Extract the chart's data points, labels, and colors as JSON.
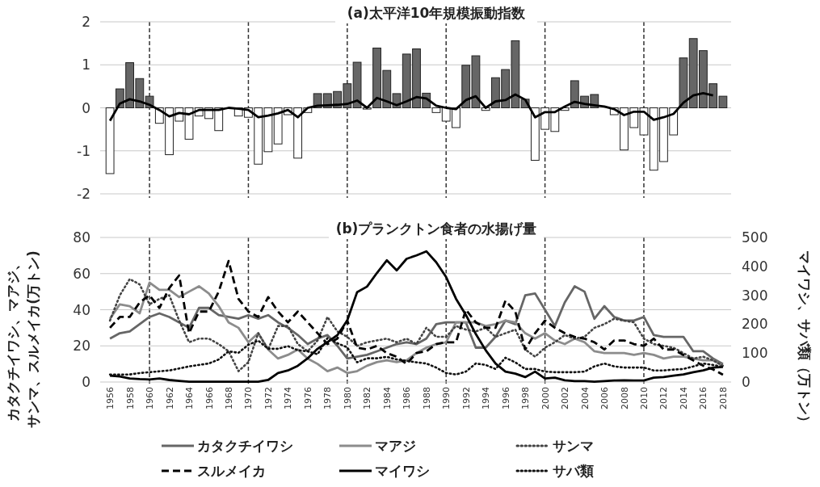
{
  "chart_data": [
    {
      "type": "bar",
      "title": "(a)太平洋10年規模振動指数",
      "categories": [
        "1956",
        null,
        "1958",
        null,
        "1960",
        null,
        "1962",
        null,
        "1964",
        null,
        "1966",
        null,
        "1968",
        null,
        "1970",
        null,
        "1972",
        null,
        "1974",
        null,
        "1976",
        null,
        "1978",
        null,
        "1980",
        null,
        "1982",
        null,
        "1984",
        null,
        "1986",
        null,
        "1988",
        null,
        "1990",
        null,
        "1992",
        null,
        "1994",
        null,
        "1996",
        null,
        "1998",
        null,
        "2000",
        null,
        "2002",
        null,
        "2004",
        null,
        "2006",
        null,
        "2008",
        null,
        "2010",
        null,
        "2012",
        null,
        "2014",
        null,
        "2016",
        null,
        "2018"
      ],
      "series": [
        {
          "colors": [
            "#ffffff",
            "#666666",
            "#666666",
            "#666666",
            "#666666",
            "#ffffff",
            "#ffffff",
            "#ffffff",
            "#ffffff",
            "#ffffff",
            "#ffffff",
            "#ffffff",
            null,
            "#ffffff",
            "#ffffff",
            "#ffffff",
            "#ffffff",
            "#ffffff",
            "#ffffff",
            "#ffffff",
            "#ffffff",
            "#666666",
            "#666666",
            "#666666",
            "#666666",
            "#666666",
            "#ffffff",
            "#666666",
            "#666666",
            "#666666",
            "#666666",
            "#666666",
            "#666666",
            "#ffffff",
            "#ffffff",
            "#ffffff",
            "#666666",
            "#666666",
            "#ffffff",
            "#666666",
            "#666666",
            "#666666",
            "#666666",
            "#ffffff",
            "#ffffff",
            "#ffffff",
            "#ffffff",
            "#666666",
            "#666666",
            "#666666",
            null,
            "#ffffff",
            "#ffffff",
            "#ffffff",
            "#ffffff",
            "#ffffff",
            "#ffffff",
            "#ffffff",
            "#666666",
            "#666666",
            "#666666",
            "#666666",
            "#666666"
          ],
          "values": [
            -1.53,
            0.44,
            1.05,
            0.68,
            0.27,
            -0.36,
            -1.09,
            -0.31,
            -0.73,
            -0.19,
            -0.25,
            -0.53,
            null,
            -0.19,
            -0.22,
            -1.31,
            -1.02,
            -0.84,
            -0.16,
            -1.17,
            -0.11,
            0.33,
            0.33,
            0.38,
            0.56,
            1.06,
            -0.03,
            1.39,
            0.87,
            0.33,
            1.25,
            1.37,
            0.34,
            -0.11,
            -0.31,
            -0.46,
            0.99,
            1.21,
            -0.06,
            0.7,
            0.89,
            1.56,
            0.2,
            -1.22,
            -0.5,
            -0.55,
            -0.06,
            0.63,
            0.27,
            0.31,
            null,
            -0.16,
            -0.98,
            -0.46,
            -0.63,
            -1.45,
            -1.25,
            -0.63,
            1.16,
            1.61,
            1.33,
            0.56,
            0.27
          ]
        },
        {
          "type": "line",
          "color": "#000000",
          "values": [
            -0.3,
            0.1,
            0.2,
            0.15,
            0.07,
            -0.05,
            -0.2,
            -0.12,
            -0.15,
            -0.05,
            -0.05,
            -0.05,
            0.0,
            -0.02,
            -0.05,
            -0.22,
            -0.18,
            -0.13,
            -0.05,
            -0.22,
            0.0,
            0.05,
            0.06,
            0.07,
            0.09,
            0.17,
            0.0,
            0.23,
            0.15,
            0.06,
            0.15,
            0.25,
            0.22,
            0.05,
            0.0,
            -0.03,
            0.18,
            0.27,
            0.0,
            0.15,
            0.18,
            0.31,
            0.19,
            -0.22,
            -0.1,
            -0.1,
            0.03,
            0.14,
            0.09,
            0.06,
            0.03,
            -0.03,
            -0.17,
            -0.09,
            -0.09,
            -0.28,
            -0.22,
            -0.14,
            0.12,
            0.29,
            0.34,
            0.29,
            null
          ]
        }
      ],
      "ylim": [
        -2,
        2
      ],
      "yticks": [
        -2,
        -1,
        0,
        1,
        2
      ],
      "grid": "y",
      "tick_labels": "y",
      "ref_lines": [
        {
          "axis": "x",
          "value": "1960",
          "line_style": "dashed"
        },
        {
          "axis": "x",
          "value": "1970",
          "line_style": "dashed"
        },
        {
          "axis": "x",
          "value": "1980",
          "line_style": "dashed"
        },
        {
          "axis": "x",
          "value": "1990",
          "line_style": "dashed"
        },
        {
          "axis": "x",
          "value": "2000",
          "line_style": "dashed"
        },
        {
          "axis": "x",
          "value": "2010",
          "line_style": "dashed"
        }
      ]
    },
    {
      "type": "line",
      "title": "(b)プランクトン食者の水揚げ量",
      "ylabel": "カタクチイワシ、マアジ、サンマ、スルメイカ(万トン)",
      "y2label": "マイワシ、サバ類（万トン）",
      "categories": [
        "1956",
        null,
        "1958",
        null,
        "1960",
        null,
        "1962",
        null,
        "1964",
        null,
        "1966",
        null,
        "1968",
        null,
        "1970",
        null,
        "1972",
        null,
        "1974",
        null,
        "1976",
        null,
        "1978",
        null,
        "1980",
        null,
        "1982",
        null,
        "1984",
        null,
        "1986",
        null,
        "1988",
        null,
        "1990",
        null,
        "1992",
        null,
        "1994",
        null,
        "1996",
        null,
        "1998",
        null,
        "2000",
        null,
        "2002",
        null,
        "2004",
        null,
        "2006",
        null,
        "2008",
        null,
        "2010",
        null,
        "2012",
        null,
        "2014",
        null,
        "2016",
        null,
        "2018"
      ],
      "series": [
        {
          "name": "カタクチイワシ",
          "color": "#666666",
          "line_style": "solid",
          "values": [
            24,
            27,
            28,
            32,
            36,
            38,
            36,
            33,
            30,
            41,
            41,
            37,
            36,
            35,
            37,
            35,
            37,
            33,
            30,
            26,
            21,
            24,
            26,
            20,
            13,
            14,
            15,
            17,
            19,
            21,
            22,
            21,
            24,
            32,
            33,
            33,
            33,
            19,
            19,
            25,
            34,
            32,
            48,
            49,
            40,
            31,
            44,
            53,
            50,
            35,
            42,
            36,
            34,
            34,
            36,
            26,
            25,
            25,
            25,
            17,
            17,
            13,
            10
          ]
        },
        {
          "name": "マアジ",
          "color": "#8c8c8c",
          "line_style": "solid",
          "values": [
            35,
            43,
            42,
            38,
            55,
            51,
            51,
            47,
            50,
            53,
            49,
            42,
            33,
            30,
            22,
            27,
            18,
            13,
            15,
            18,
            13,
            10,
            6,
            8,
            5,
            6,
            9,
            11,
            12,
            11,
            12,
            16,
            19,
            21,
            22,
            33,
            33,
            33,
            31,
            32,
            34,
            33,
            27,
            24,
            27,
            23,
            21,
            24,
            22,
            17,
            16,
            16,
            16,
            15,
            16,
            15,
            13,
            14,
            14,
            13,
            12,
            12,
            9
          ]
        },
        {
          "name": "サンマ",
          "color": "#444444",
          "line_style": "dotted",
          "values": [
            34,
            48,
            57,
            54,
            43,
            46,
            48,
            34,
            22,
            24,
            24,
            21,
            17,
            6,
            11,
            27,
            18,
            31,
            31,
            21,
            17,
            23,
            36,
            28,
            25,
            20,
            22,
            23,
            24,
            22,
            24,
            21,
            30,
            25,
            25,
            31,
            29,
            28,
            30,
            25,
            27,
            29,
            18,
            14,
            19,
            22,
            26,
            24,
            25,
            30,
            32,
            35,
            34,
            33,
            24,
            21,
            20,
            19,
            16,
            13,
            14,
            12,
            9
          ]
        },
        {
          "name": "スルメイカ",
          "color": "#000000",
          "line_style": "dashed",
          "values": [
            30,
            36,
            36,
            44,
            48,
            41,
            52,
            59,
            27,
            39,
            39,
            50,
            67,
            46,
            39,
            36,
            47,
            39,
            33,
            39,
            33,
            27,
            21,
            24,
            34,
            19,
            18,
            20,
            16,
            14,
            10,
            16,
            17,
            21,
            22,
            22,
            40,
            33,
            30,
            30,
            45,
            39,
            18,
            27,
            34,
            30,
            27,
            25,
            24,
            22,
            18,
            23,
            23,
            21,
            20,
            24,
            18,
            18,
            15,
            12,
            9,
            7,
            4
          ]
        },
        {
          "name": "マイワシ",
          "color": "#000000",
          "line_style": "solid",
          "axis": "y2",
          "values": [
            22,
            19,
            12,
            10,
            9,
            12,
            7,
            4,
            1,
            1,
            1,
            1,
            1,
            1,
            1,
            1,
            7,
            31,
            40,
            56,
            82,
            115,
            138,
            162,
            213,
            311,
            330,
            377,
            421,
            386,
            426,
            438,
            452,
            414,
            363,
            288,
            232,
            166,
            110,
            64,
            36,
            29,
            17,
            36,
            12,
            15,
            6,
            3,
            3,
            1,
            3,
            5,
            6,
            5,
            5,
            15,
            17,
            22,
            26,
            34,
            40,
            50,
            52
          ]
        },
        {
          "name": "サバ類",
          "color": "#111111",
          "line_style": "dotted",
          "axis": "y2",
          "values": [
            26,
            26,
            26,
            31,
            34,
            37,
            40,
            47,
            54,
            59,
            64,
            78,
            106,
            101,
            129,
            143,
            115,
            115,
            124,
            110,
            106,
            96,
            152,
            134,
            120,
            68,
            82,
            82,
            87,
            78,
            73,
            68,
            64,
            50,
            31,
            26,
            36,
            64,
            59,
            45,
            84,
            68,
            45,
            45,
            36,
            34,
            34,
            34,
            36,
            54,
            64,
            54,
            50,
            50,
            50,
            40,
            40,
            43,
            45,
            54,
            64,
            59,
            52
          ]
        }
      ],
      "ylim": [
        0,
        80
      ],
      "yticks": [
        0,
        20,
        40,
        60,
        80
      ],
      "y2lim": [
        0,
        500
      ],
      "y2ticks": [
        0,
        100,
        200,
        300,
        400,
        500
      ],
      "grid": "y",
      "legend": "bottom",
      "ref_lines": [
        {
          "axis": "x",
          "value": "1960",
          "line_style": "dashed"
        },
        {
          "axis": "x",
          "value": "1970",
          "line_style": "dashed"
        },
        {
          "axis": "x",
          "value": "1980",
          "line_style": "dashed"
        },
        {
          "axis": "x",
          "value": "1990",
          "line_style": "dashed"
        },
        {
          "axis": "x",
          "value": "2000",
          "line_style": "dashed"
        },
        {
          "axis": "x",
          "value": "2010",
          "line_style": "dashed"
        }
      ]
    }
  ]
}
